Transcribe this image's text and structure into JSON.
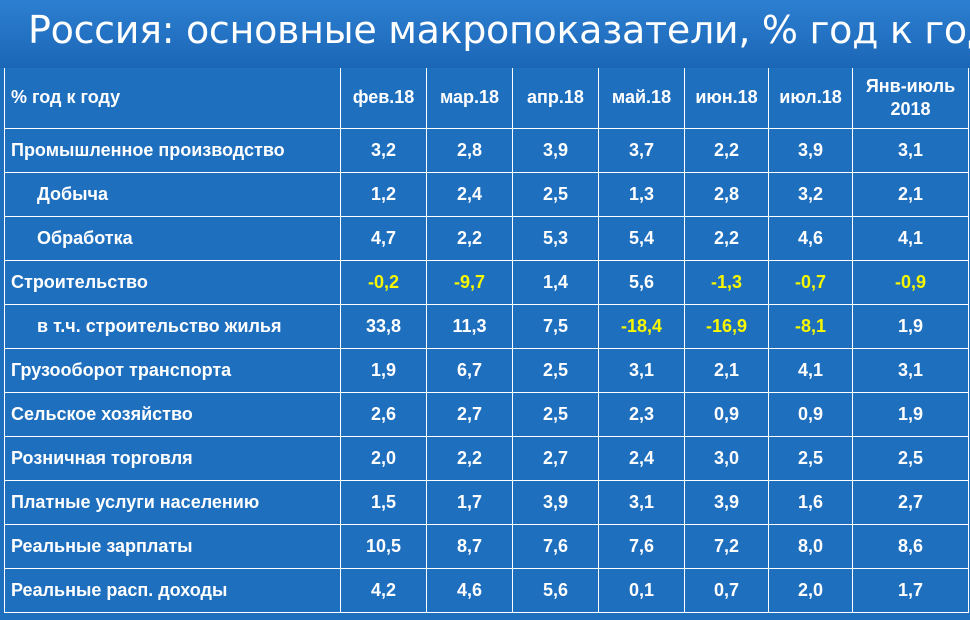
{
  "title": "Россия: основные макропоказатели, % год к году",
  "header": {
    "label": "% год к году",
    "columns": [
      "фев.18",
      "мар.18",
      "апр.18",
      "май.18",
      "июн.18",
      "июл.18"
    ],
    "last_line1": "Янв-июль",
    "last_line2": "2018"
  },
  "rows": [
    {
      "label": "Промышленное производство",
      "values": [
        "3,2",
        "2,8",
        "3,9",
        "3,7",
        "2,2",
        "3,9",
        "3,1"
      ]
    },
    {
      "label": "Добыча",
      "values": [
        "1,2",
        "2,4",
        "2,5",
        "1,3",
        "2,8",
        "3,2",
        "2,1"
      ]
    },
    {
      "label": "Обработка",
      "values": [
        "4,7",
        "2,2",
        "5,3",
        "5,4",
        "2,2",
        "4,6",
        "4,1"
      ]
    },
    {
      "label": "Строительство",
      "values": [
        "-0,2",
        "-9,7",
        "1,4",
        "5,6",
        "-1,3",
        "-0,7",
        "-0,9"
      ]
    },
    {
      "label": "в т.ч. строительство жилья",
      "values": [
        "33,8",
        "11,3",
        "7,5",
        "-18,4",
        "-16,9",
        "-8,1",
        "1,9"
      ]
    },
    {
      "label": "Грузооборот транспорта",
      "values": [
        "1,9",
        "6,7",
        "2,5",
        "3,1",
        "2,1",
        "4,1",
        "3,1"
      ]
    },
    {
      "label": "Сельское хозяйство",
      "values": [
        "2,6",
        "2,7",
        "2,5",
        "2,3",
        "0,9",
        "0,9",
        "1,9"
      ]
    },
    {
      "label": "Розничная торговля",
      "values": [
        "2,0",
        "2,2",
        "2,7",
        "2,4",
        "3,0",
        "2,5",
        "2,5"
      ]
    },
    {
      "label": "Платные услуги населению",
      "values": [
        "1,5",
        "1,7",
        "3,9",
        "3,1",
        "3,9",
        "1,6",
        "2,7"
      ]
    },
    {
      "label": "Реальные зарплаты",
      "values": [
        "10,5",
        "8,7",
        "7,6",
        "7,6",
        "7,2",
        "8,0",
        "8,6"
      ]
    },
    {
      "label": "Реальные расп. доходы",
      "values": [
        "4,2",
        "4,6",
        "5,6",
        "0,1",
        "0,7",
        "2,0",
        "1,7"
      ]
    }
  ],
  "colors": {
    "background": "#1f6fbf",
    "text": "#ffffff",
    "negative": "#f7f700"
  }
}
